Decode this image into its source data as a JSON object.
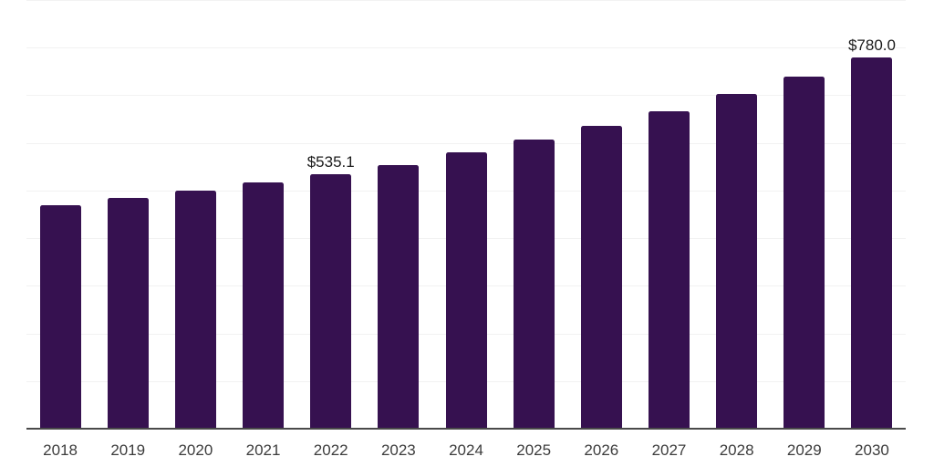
{
  "chart_data": {
    "type": "bar",
    "title": "",
    "xlabel": "",
    "ylabel": "",
    "categories": [
      "2018",
      "2019",
      "2020",
      "2021",
      "2022",
      "2023",
      "2024",
      "2025",
      "2026",
      "2027",
      "2028",
      "2029",
      "2030"
    ],
    "values": [
      469.6,
      485.4,
      500.0,
      516.2,
      535.1,
      554.3,
      579.3,
      606.9,
      635.7,
      666.0,
      702.4,
      739.8,
      780.0
    ],
    "bar_labels": [
      "",
      "",
      "",
      "",
      "$535.1",
      "",
      "",
      "",
      "",
      "",
      "",
      "",
      "$780.0"
    ],
    "ylim": [
      0,
      900
    ],
    "gridline_step": 100,
    "grid": true,
    "y_axis_labels_visible": false,
    "legend_position": "none",
    "currency_prefix": "$"
  },
  "style": {
    "bar_color": "#361150",
    "grid_color": "#f2f2f2",
    "axis_line_color": "#4a4a4a",
    "tick_label_color": "#3c3c3c",
    "data_label_color": "#1b1b1b",
    "background": "#ffffff"
  }
}
